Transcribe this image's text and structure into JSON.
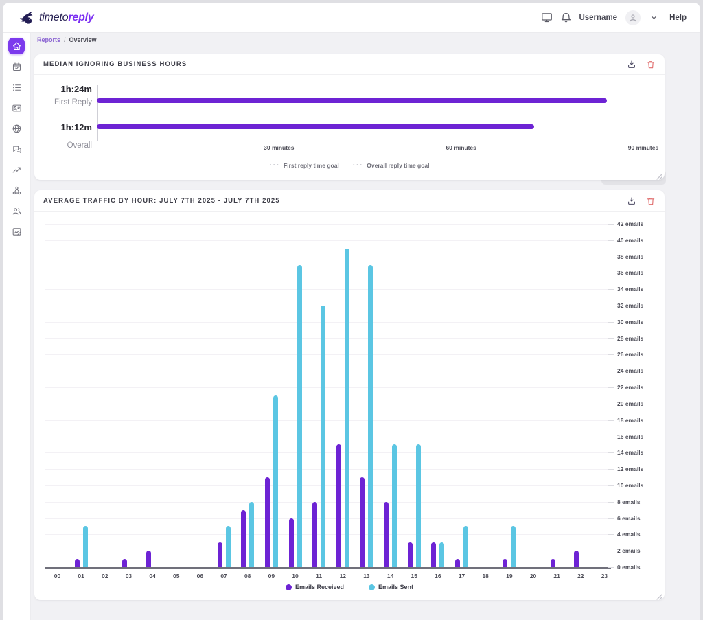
{
  "brand": {
    "prefix": "timeto",
    "suffix": "reply"
  },
  "topbar": {
    "username": "Username",
    "help_label": "Help"
  },
  "breadcrumb": {
    "link": "Reports",
    "separator": "/",
    "current": "Overview"
  },
  "sidebar": {
    "active_color": "#7c3aed",
    "items": [
      {
        "icon": "home",
        "active": true
      },
      {
        "icon": "calendar-check",
        "active": false
      },
      {
        "icon": "list",
        "active": false
      },
      {
        "icon": "id-card",
        "active": false
      },
      {
        "icon": "globe",
        "active": false
      },
      {
        "icon": "chat",
        "active": false
      },
      {
        "icon": "trend",
        "active": false
      },
      {
        "icon": "share-network",
        "active": false
      },
      {
        "icon": "users",
        "active": false
      },
      {
        "icon": "report-image",
        "active": false
      }
    ]
  },
  "colors": {
    "received_purple": "#6d23d4",
    "sent_cyan": "#5bc6e3",
    "delete_red": "#e06c6c",
    "active_purple": "#7c3aed"
  },
  "chart_data": [
    {
      "type": "bar",
      "orientation": "horizontal",
      "title": "MEDIAN IGNORING BUSINESS HOURS",
      "categories": [
        "First Reply",
        "Overall"
      ],
      "values_minutes": [
        84,
        72
      ],
      "value_labels": [
        "1h:24m",
        "1h:12m"
      ],
      "xlim": [
        0,
        90
      ],
      "x_ticks": [
        {
          "minutes": 30,
          "label": "30 minutes"
        },
        {
          "minutes": 60,
          "label": "60 minutes"
        },
        {
          "minutes": 90,
          "label": "90 minutes"
        }
      ],
      "legend": [
        "First reply time goal",
        "Overall reply time goal"
      ],
      "bar_color": "#6d23d4",
      "grid": false
    },
    {
      "type": "bar",
      "title": "AVERAGE TRAFFIC BY HOUR: JULY 7TH 2025 - JULY 7TH 2025",
      "categories": [
        "00",
        "01",
        "02",
        "03",
        "04",
        "05",
        "06",
        "07",
        "08",
        "09",
        "10",
        "11",
        "12",
        "13",
        "14",
        "15",
        "16",
        "17",
        "18",
        "19",
        "20",
        "21",
        "22",
        "23"
      ],
      "series": [
        {
          "name": "Emails Received",
          "color": "#6d23d4",
          "values": [
            0,
            1,
            0,
            1,
            2,
            0,
            0,
            3,
            7,
            11,
            6,
            8,
            15,
            11,
            8,
            3,
            3,
            1,
            0,
            1,
            0,
            1,
            2,
            0
          ]
        },
        {
          "name": "Emails Sent",
          "color": "#5bc6e3",
          "values": [
            0,
            5,
            0,
            0,
            0,
            0,
            0,
            5,
            8,
            21,
            37,
            32,
            39,
            37,
            15,
            15,
            3,
            5,
            0,
            5,
            0,
            0,
            0,
            0
          ]
        }
      ],
      "ylim": [
        0,
        42
      ],
      "y_tick_step": 2,
      "y_ticks": [
        "0 emails",
        "2 emails",
        "4 emails",
        "6 emails",
        "8 emails",
        "10 emails",
        "12 emails",
        "14 emails",
        "16 emails",
        "18 emails",
        "20 emails",
        "22 emails",
        "24 emails",
        "26 emails",
        "28 emails",
        "30 emails",
        "32 emails",
        "34 emails",
        "36 emails",
        "38 emails",
        "40 emails",
        "42 emails"
      ],
      "grid": true,
      "legend_position": "bottom"
    }
  ]
}
